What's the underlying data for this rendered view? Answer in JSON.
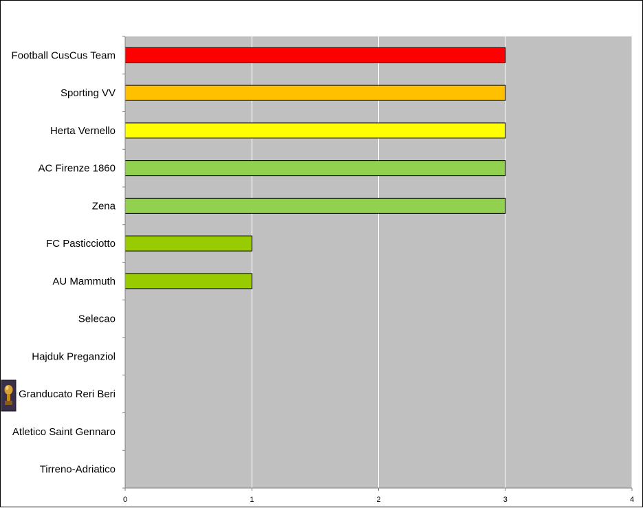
{
  "chart_data": {
    "type": "bar",
    "orientation": "horizontal",
    "categories": [
      "Football CusCus Team",
      "Sporting VV",
      "Herta Vernello",
      "AC Firenze 1860",
      "Zena",
      "FC Pasticciotto",
      "AU Mammuth",
      "Selecao",
      "Hajduk Preganziol",
      "Granducato Reri Beri",
      "Atletico Saint Gennaro",
      "Tirreno-Adriatico"
    ],
    "values": [
      3,
      3,
      3,
      3,
      3,
      1,
      1,
      0,
      0,
      0,
      0,
      0
    ],
    "bar_colors": [
      "#ff0000",
      "#ffc000",
      "#ffff00",
      "#92d050",
      "#92d050",
      "#99cc00",
      "#99cc00",
      "#99cc00",
      "#99cc00",
      "#99cc00",
      "#99cc00",
      "#99cc00"
    ],
    "xlim": [
      0,
      4
    ],
    "xticks": [
      "0",
      "1",
      "2",
      "3",
      "4"
    ],
    "title": "",
    "xlabel": "",
    "ylabel": "",
    "grid": "vertical",
    "plot_background": "#c0c0c0",
    "legend": "none"
  },
  "decorations": {
    "trophy_icon": "trophy-icon"
  }
}
